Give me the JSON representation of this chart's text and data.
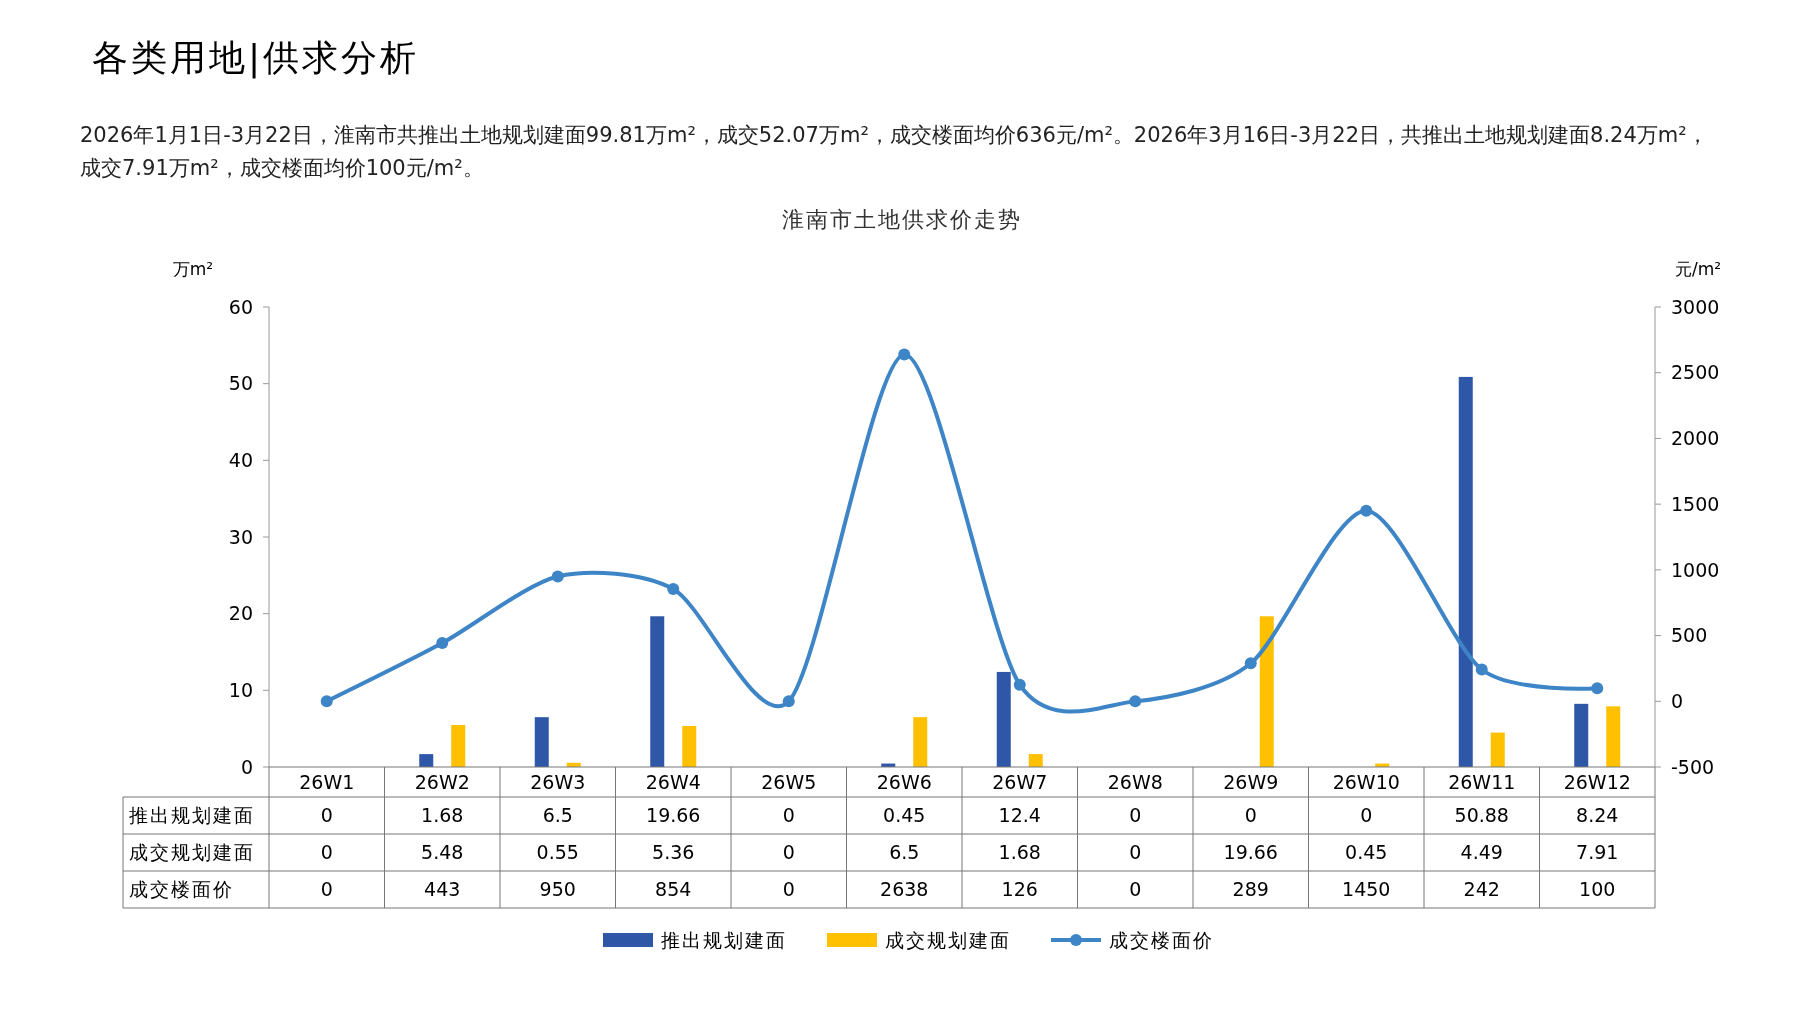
{
  "chart_data": {
    "type": "bar",
    "title": "各类用地|供求分析",
    "subtitle": "2026年1月1日-3月22日，淮南市共推出土地规划建面99.81万m²，成交52.07万m²，成交楼面均价636元/m²。2026年3月16日-3月22日，共推出土地规划建面8.24万m²，成交7.91万m²，成交楼面均价100元/m²。",
    "annotations": [
      "淮南市土地供求价走势"
    ],
    "ylabel": "万m²",
    "y2label": "元/m²",
    "categories": [
      "26W1",
      "26W2",
      "26W3",
      "26W4",
      "26W5",
      "26W6",
      "26W7",
      "26W8",
      "26W9",
      "26W10",
      "26W11",
      "26W12"
    ],
    "series": [
      {
        "name": "推出规划建面",
        "color": "#2f57a8",
        "values": [
          0,
          1.68,
          6.5,
          19.66,
          0,
          0.45,
          12.4,
          0,
          0,
          0,
          50.88,
          8.24
        ]
      },
      {
        "name": "成交规划建面",
        "color": "#ffc000",
        "values": [
          0,
          5.48,
          0.55,
          5.36,
          0,
          6.5,
          1.68,
          0,
          19.66,
          0.45,
          4.49,
          7.91
        ]
      },
      {
        "name": "成交楼面价",
        "type": "line",
        "axis": "y2",
        "color": "#3d85c6",
        "values": [
          0,
          443,
          950,
          854,
          0,
          2638,
          126,
          0,
          289,
          1450,
          242,
          100
        ]
      }
    ],
    "ylim": [
      0,
      60
    ],
    "yticks": [
      0,
      10,
      20,
      30,
      40,
      50,
      60
    ],
    "y2lim": [
      -500,
      3000
    ],
    "y2ticks": [
      -500,
      0,
      500,
      1000,
      1500,
      2000,
      2500,
      3000
    ],
    "data_labels": true,
    "legend": "bottom",
    "marker": "circle",
    "grid": false
  }
}
